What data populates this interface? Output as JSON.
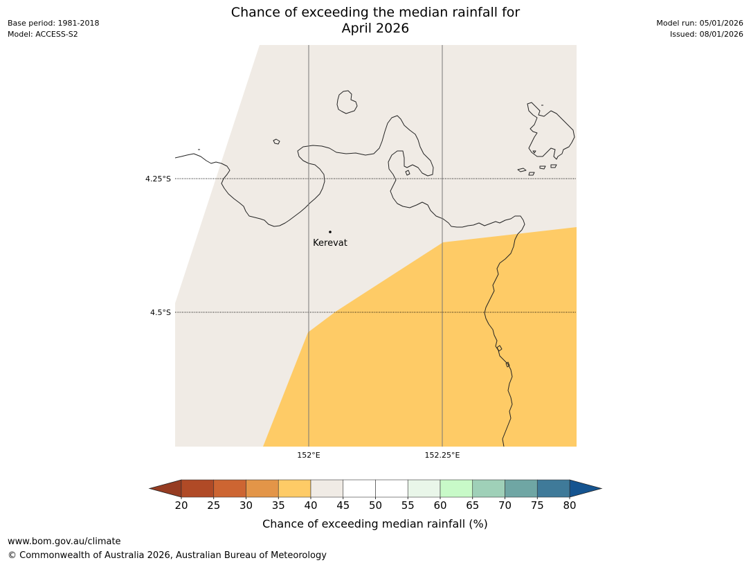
{
  "header": {
    "title_line1": "Chance of exceeding the median rainfall for",
    "title_line2": "April 2026",
    "base_period": "Base period: 1981-2018",
    "model": "Model: ACCESS-S2",
    "model_run": "Model run: 05/01/2026",
    "issued": "Issued: 08/01/2026"
  },
  "map": {
    "lat_labels": [
      "4.25°S",
      "4.5°S"
    ],
    "lon_labels": [
      "152°E",
      "152.25°E"
    ],
    "place": "Kerevat",
    "colors": {
      "land_fill": "#f0ebe5",
      "orange_fill": "#fecb66",
      "coastline": "#222222",
      "grid": "#777777"
    }
  },
  "legend": {
    "ticks": [
      "20",
      "25",
      "30",
      "35",
      "40",
      "45",
      "50",
      "55",
      "60",
      "65",
      "70",
      "75",
      "80"
    ],
    "colors": [
      "#b04a26",
      "#cd6532",
      "#e39548",
      "#fecb66",
      "#f0ebe5",
      "#ffffff",
      "#ffffff",
      "#e9f6e9",
      "#c8fac8",
      "#9fd0b8",
      "#6fa6a4",
      "#3f7a99"
    ],
    "under_color": "#963c22",
    "over_color": "#155490",
    "label": "Chance of exceeding median rainfall (%)"
  },
  "footer": {
    "url": "www.bom.gov.au/climate",
    "copyright": "© Commonwealth of Australia 2026, Australian Bureau of Meteorology"
  }
}
